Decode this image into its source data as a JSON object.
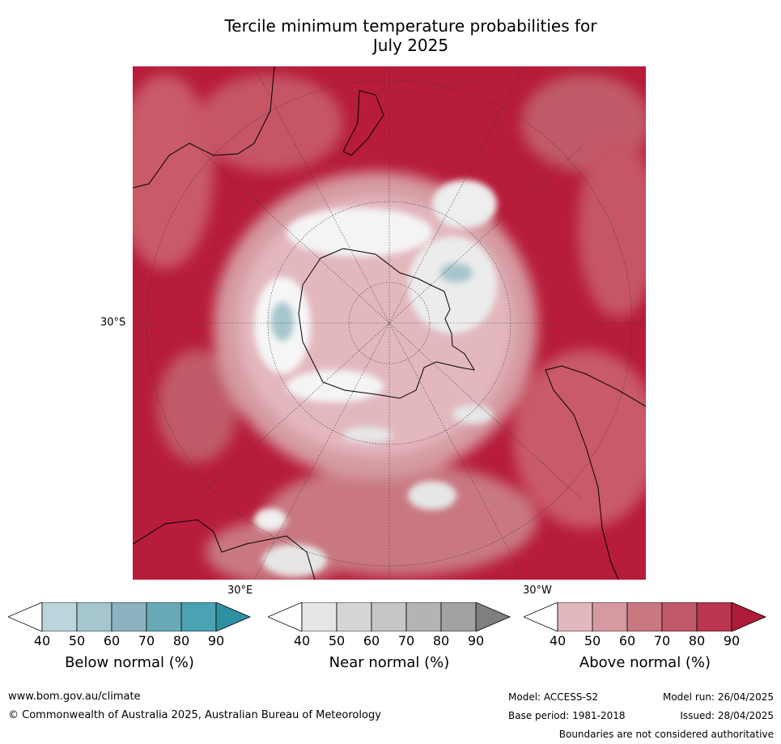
{
  "title_line1": "Tercile minimum temperature probabilities for",
  "title_line2": "July 2025",
  "map": {
    "lat_label": "30°S",
    "lon_label_east": "30°E",
    "lon_label_west": "30°W"
  },
  "legend": {
    "below": {
      "label": "Below normal (%)",
      "ticks": [
        "40",
        "50",
        "60",
        "70",
        "80",
        "90"
      ],
      "colors": [
        "#ffffff",
        "#bcd5dc",
        "#a6c6cd",
        "#8bb4c0",
        "#6aaab8",
        "#4aa2b2",
        "#2f8fa3"
      ]
    },
    "near": {
      "label": "Near normal (%)",
      "ticks": [
        "40",
        "50",
        "60",
        "70",
        "80",
        "90"
      ],
      "colors": [
        "#ffffff",
        "#e6e6e6",
        "#d6d6d6",
        "#c6c6c6",
        "#b4b4b4",
        "#a2a2a2",
        "#7f7f7f"
      ]
    },
    "above": {
      "label": "Above normal (%)",
      "ticks": [
        "40",
        "50",
        "60",
        "70",
        "80",
        "90"
      ],
      "colors": [
        "#ffffff",
        "#e3b8bd",
        "#d59aa1",
        "#c97881",
        "#c05a68",
        "#ba3650",
        "#b01b3a"
      ]
    }
  },
  "footer": {
    "website": "www.bom.gov.au/climate",
    "copyright": "© Commonwealth of Australia 2025, Australian Bureau of Meteorology",
    "model": "Model: ACCESS-S2",
    "model_run": "Model run: 26/04/2025",
    "base_period": "Base period: 1981-2018",
    "issued": "Issued: 28/04/2025",
    "disclaimer": "Boundaries are not considered authoritative"
  }
}
